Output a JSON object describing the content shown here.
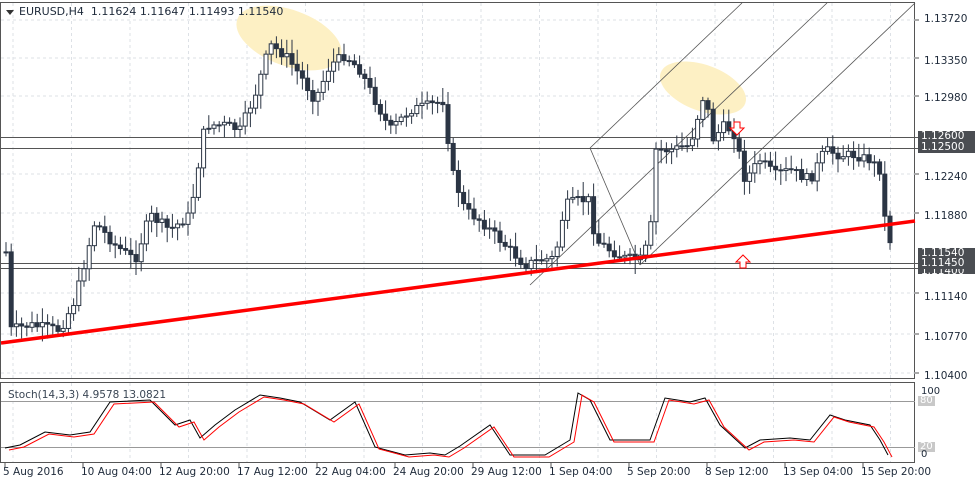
{
  "header": {
    "symbol": "EURUSD,H4",
    "ohlc": "1.11624 1.11647 1.11493 1.11540"
  },
  "price_axis": {
    "ticks": [
      "1.13720",
      "1.13350",
      "1.12980",
      "1.12240",
      "1.11880",
      "1.11140",
      "1.10770",
      "1.10400"
    ],
    "tags": [
      "1.12600",
      "1.12500",
      "1.11540",
      "1.11450",
      "1.11400"
    ]
  },
  "stochastic": {
    "label": "Stoch(14,3,3) 4.9578 13.0821",
    "levels": [
      "100",
      "80",
      "20",
      "0"
    ]
  },
  "time_axis": [
    "5 Aug 2016",
    "10 Aug 04:00",
    "12 Aug 20:00",
    "17 Aug 12:00",
    "22 Aug 04:00",
    "24 Aug 20:00",
    "29 Aug 12:00",
    "1 Sep 04:00",
    "5 Sep 20:00",
    "8 Sep 12:00",
    "13 Sep 04:00",
    "15 Sep 20:00"
  ],
  "colors": {
    "candle": "#2b3544",
    "trendline": "#ff0000",
    "highlight": "#fdf0c4",
    "grid": "#d8dce2",
    "hline": "#555555",
    "stoch_main": "#000000",
    "stoch_signal": "#ff0000"
  },
  "chart_data": {
    "type": "candlestick",
    "title": "EURUSD,H4",
    "ylim": [
      1.104,
      1.1372
    ],
    "horizontal_levels": [
      1.126,
      1.125,
      1.1145,
      1.114
    ],
    "trendline": {
      "from": [
        0,
        1.1092
      ],
      "to": [
        915,
        1.1189
      ]
    },
    "current_price": 1.1154
  }
}
